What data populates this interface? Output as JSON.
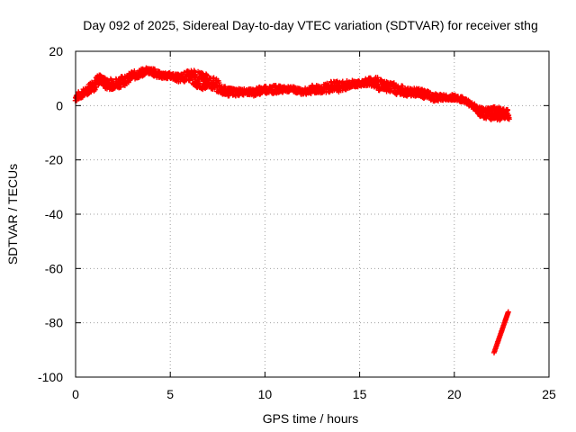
{
  "chart_data": {
    "type": "scatter",
    "title": "Day 092 of 2025, Sidereal Day-to-day VTEC variation (SDTVAR) for receiver sthg",
    "xlabel": "GPS time / hours",
    "ylabel": "SDTVAR / TECUs",
    "xlim": [
      0,
      25
    ],
    "ylim": [
      -100,
      20
    ],
    "xticks": [
      0,
      5,
      10,
      15,
      20,
      25
    ],
    "yticks": [
      -100,
      -80,
      -60,
      -40,
      -20,
      0,
      20
    ],
    "grid": true,
    "legend": "none",
    "series": [
      {
        "name": "SDTVAR",
        "color": "#ff0000",
        "marker": "plus",
        "main_trace": {
          "x": [
            0.0,
            0.5,
            1.0,
            1.3,
            1.6,
            2.0,
            2.5,
            3.0,
            3.5,
            3.8,
            4.2,
            4.6,
            5.0,
            5.5,
            6.0,
            6.3,
            6.7,
            7.0,
            7.5,
            8.0,
            8.5,
            9.0,
            9.5,
            10.0,
            10.5,
            11.0,
            11.5,
            12.0,
            12.5,
            13.0,
            13.5,
            14.0,
            14.5,
            15.0,
            15.5,
            16.0,
            16.5,
            17.0,
            17.5,
            18.0,
            18.5,
            19.0,
            19.5,
            20.0,
            20.5,
            21.0,
            21.3,
            21.6,
            22.0,
            22.3,
            22.6,
            22.9
          ],
          "y": [
            3,
            5,
            8,
            10,
            8,
            8,
            9,
            11,
            12,
            13,
            12,
            11,
            11,
            10,
            11,
            10,
            9,
            9,
            7,
            5,
            5,
            5,
            5,
            6,
            6,
            6,
            6,
            5,
            6,
            6,
            7,
            7,
            8,
            8,
            9,
            8,
            7,
            6,
            5,
            5,
            4,
            3,
            3,
            3,
            2,
            0,
            -2,
            -3,
            -3,
            -3,
            -3,
            -3
          ],
          "spread": [
            1.5,
            1.5,
            2.5,
            1.5,
            2.0,
            2.0,
            2.0,
            1.5,
            1.5,
            1.0,
            1.5,
            1.0,
            1.0,
            1.5,
            2.0,
            3.0,
            3.0,
            2.5,
            2.5,
            1.5,
            1.5,
            1.0,
            1.5,
            1.5,
            1.5,
            1.0,
            1.0,
            1.0,
            1.5,
            1.5,
            2.0,
            2.0,
            1.5,
            1.0,
            1.5,
            2.5,
            2.0,
            2.0,
            1.5,
            1.5,
            1.5,
            1.5,
            1.0,
            1.0,
            1.0,
            1.0,
            1.5,
            2.0,
            2.5,
            2.5,
            2.0,
            2.0
          ]
        },
        "outlier_trace": {
          "x": [
            22.1,
            22.3,
            22.5,
            22.7,
            22.85
          ],
          "y": [
            -91,
            -87,
            -83,
            -79,
            -76
          ]
        }
      }
    ]
  }
}
